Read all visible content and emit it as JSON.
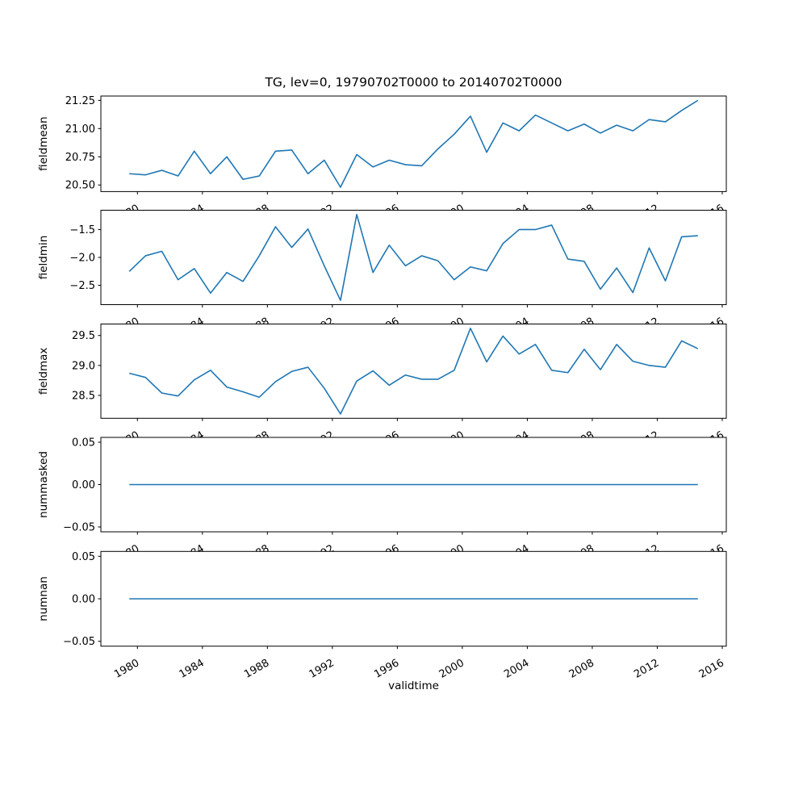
{
  "chart_data": {
    "type": "line",
    "title": "TG, lev=0, 19790702T0000 to 20140702T0000",
    "xlabel": "validtime",
    "legend": "none",
    "grid": false,
    "line_color": "#1f77b4",
    "axis_color": "#000000",
    "background_color": "#ffffff",
    "xlim": [
      1977.75,
      2016.25
    ],
    "xticks": [
      1980,
      1984,
      1988,
      1992,
      1996,
      2000,
      2004,
      2008,
      2012,
      2016
    ],
    "xtick_labels": [
      "1980",
      "1984",
      "1988",
      "1992",
      "1996",
      "2000",
      "2004",
      "2008",
      "2012",
      "2016"
    ],
    "xtick_rotation_deg": 30,
    "x": [
      1979.5,
      1980.5,
      1981.5,
      1982.5,
      1983.5,
      1984.5,
      1985.5,
      1986.5,
      1987.5,
      1988.5,
      1989.5,
      1990.5,
      1991.5,
      1992.5,
      1993.5,
      1994.5,
      1995.5,
      1996.5,
      1997.5,
      1998.5,
      1999.5,
      2000.5,
      2001.5,
      2002.5,
      2003.5,
      2004.5,
      2005.5,
      2006.5,
      2007.5,
      2008.5,
      2009.5,
      2010.5,
      2011.5,
      2012.5,
      2013.5,
      2014.5
    ],
    "years": [
      1979,
      1980,
      1981,
      1982,
      1983,
      1984,
      1985,
      1986,
      1987,
      1988,
      1989,
      1990,
      1991,
      1992,
      1993,
      1994,
      1995,
      1996,
      1997,
      1998,
      1999,
      2000,
      2001,
      2002,
      2003,
      2004,
      2005,
      2006,
      2007,
      2008,
      2009,
      2010,
      2011,
      2012,
      2013,
      2014
    ],
    "subplots": [
      {
        "ylabel": "fieldmean",
        "ylim": [
          20.4415,
          21.2885
        ],
        "yticks": [
          20.5,
          20.75,
          21.0,
          21.25
        ],
        "ytick_labels": [
          "20.50",
          "20.75",
          "21.00",
          "21.25"
        ],
        "values": [
          20.6,
          20.59,
          20.63,
          20.58,
          20.8,
          20.6,
          20.75,
          20.55,
          20.58,
          20.8,
          20.81,
          20.6,
          20.72,
          20.48,
          20.77,
          20.66,
          20.72,
          20.68,
          20.67,
          20.82,
          20.95,
          21.11,
          20.79,
          21.05,
          20.98,
          21.12,
          21.05,
          20.98,
          21.04,
          20.96,
          21.03,
          20.98,
          21.08,
          21.06,
          21.16,
          21.25
        ]
      },
      {
        "ylabel": "fieldmin",
        "ylim": [
          -2.847,
          -1.153
        ],
        "yticks": [
          -2.5,
          -2.0,
          -1.5
        ],
        "ytick_labels": [
          "−2.5",
          "−2.0",
          "−1.5"
        ],
        "values": [
          -2.25,
          -1.97,
          -1.89,
          -2.4,
          -2.2,
          -2.64,
          -2.27,
          -2.43,
          -1.97,
          -1.45,
          -1.82,
          -1.49,
          -2.15,
          -2.77,
          -1.23,
          -2.27,
          -1.78,
          -2.15,
          -1.97,
          -2.06,
          -2.4,
          -2.17,
          -2.24,
          -1.75,
          -1.5,
          -1.5,
          -1.42,
          -2.03,
          -2.07,
          -2.57,
          -2.19,
          -2.63,
          -1.83,
          -2.42,
          -1.63,
          -1.61
        ]
      },
      {
        "ylabel": "fieldmax",
        "ylim": [
          28.1185,
          29.6915
        ],
        "yticks": [
          28.5,
          29.0,
          29.5
        ],
        "ytick_labels": [
          "28.5",
          "29.0",
          "29.5"
        ],
        "values": [
          28.87,
          28.8,
          28.54,
          28.49,
          28.76,
          28.92,
          28.64,
          28.56,
          28.47,
          28.73,
          28.9,
          28.97,
          28.62,
          28.19,
          28.74,
          28.91,
          28.67,
          28.84,
          28.77,
          28.77,
          28.92,
          29.62,
          29.06,
          29.49,
          29.19,
          29.35,
          28.92,
          28.88,
          29.27,
          28.93,
          29.35,
          29.07,
          29.0,
          28.97,
          29.41,
          29.28
        ]
      },
      {
        "ylabel": "nummasked",
        "ylim": [
          -0.0557,
          0.0557
        ],
        "yticks": [
          -0.05,
          0.0,
          0.05
        ],
        "ytick_labels": [
          "−0.05",
          "0.00",
          "0.05"
        ],
        "values": [
          0,
          0,
          0,
          0,
          0,
          0,
          0,
          0,
          0,
          0,
          0,
          0,
          0,
          0,
          0,
          0,
          0,
          0,
          0,
          0,
          0,
          0,
          0,
          0,
          0,
          0,
          0,
          0,
          0,
          0,
          0,
          0,
          0,
          0,
          0,
          0
        ]
      },
      {
        "ylabel": "numnan",
        "ylim": [
          -0.0557,
          0.0557
        ],
        "yticks": [
          -0.05,
          0.0,
          0.05
        ],
        "ytick_labels": [
          "−0.05",
          "0.00",
          "0.05"
        ],
        "values": [
          0,
          0,
          0,
          0,
          0,
          0,
          0,
          0,
          0,
          0,
          0,
          0,
          0,
          0,
          0,
          0,
          0,
          0,
          0,
          0,
          0,
          0,
          0,
          0,
          0,
          0,
          0,
          0,
          0,
          0,
          0,
          0,
          0,
          0,
          0,
          0
        ]
      }
    ]
  }
}
